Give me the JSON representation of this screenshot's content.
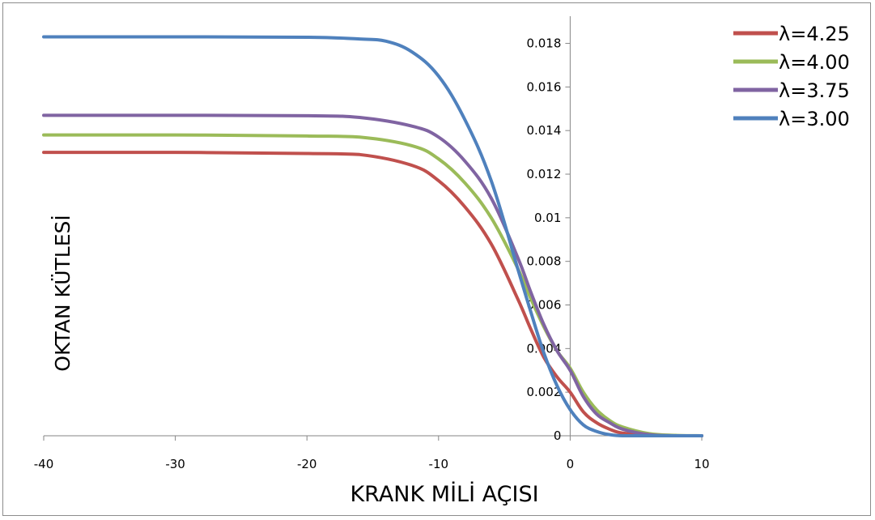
{
  "chart_data": {
    "type": "line",
    "title": "",
    "xlabel": "KRANK MİLİ AÇISI",
    "ylabel": "OKTAN KÜTLESİ",
    "xlim": [
      -40,
      10
    ],
    "ylim": [
      0,
      0.0188
    ],
    "xticks": [
      -40,
      -30,
      -20,
      -10,
      0,
      10
    ],
    "xtick_labels": [
      "-40",
      "-30",
      "-20",
      "-10",
      "0",
      "10"
    ],
    "yticks": [
      0,
      0.002,
      0.004,
      0.006,
      0.008,
      0.01,
      0.012,
      0.014,
      0.016,
      0.018
    ],
    "ytick_labels": [
      "0",
      "0.002",
      "0.004",
      "0.006",
      "0.008",
      "0.01",
      "0.012",
      "0.014",
      "0.016",
      "0.018"
    ],
    "grid": false,
    "legend_position": "top-right",
    "series": [
      {
        "name": "λ=4.25",
        "color": "#c0504d",
        "x": [
          -40,
          -30,
          -20,
          -16,
          -12,
          -10,
          -8,
          -6,
          -4,
          -3,
          -2,
          -1,
          0,
          1,
          2,
          3,
          4,
          6,
          8,
          10
        ],
        "y": [
          0.013,
          0.013,
          0.01295,
          0.0129,
          0.0124,
          0.0117,
          0.0105,
          0.0088,
          0.0063,
          0.0049,
          0.0036,
          0.0027,
          0.002,
          0.0011,
          0.0006,
          0.0003,
          0.00012,
          3e-05,
          0.0,
          0.0
        ]
      },
      {
        "name": "λ=4.00",
        "color": "#9bbb59",
        "x": [
          -40,
          -30,
          -20,
          -16,
          -12,
          -10,
          -8,
          -6,
          -4,
          -3,
          -2,
          -1,
          0,
          1,
          2,
          3,
          4,
          6,
          8,
          10
        ],
        "y": [
          0.0138,
          0.0138,
          0.01375,
          0.0137,
          0.0133,
          0.0127,
          0.0116,
          0.01,
          0.0077,
          0.0063,
          0.005,
          0.0039,
          0.0031,
          0.002,
          0.0012,
          0.0007,
          0.0004,
          0.0001,
          2e-05,
          0.0
        ]
      },
      {
        "name": "λ=3.75",
        "color": "#8064a2",
        "x": [
          -40,
          -30,
          -20,
          -16,
          -12,
          -10,
          -8,
          -6,
          -4,
          -3,
          -2,
          -1,
          0,
          1,
          2,
          3,
          4,
          6,
          8,
          10
        ],
        "y": [
          0.0147,
          0.0147,
          0.01468,
          0.0146,
          0.0142,
          0.0137,
          0.0126,
          0.0109,
          0.0082,
          0.0066,
          0.0051,
          0.0039,
          0.003,
          0.0018,
          0.001,
          0.0006,
          0.0003,
          5e-05,
          0.0,
          0.0
        ]
      },
      {
        "name": "λ=3.00",
        "color": "#4f81bd",
        "x": [
          -40,
          -30,
          -20,
          -16,
          -14,
          -12,
          -10,
          -8,
          -6,
          -4,
          -3,
          -2,
          -1,
          0,
          1,
          2,
          3,
          4,
          6,
          10
        ],
        "y": [
          0.0183,
          0.0183,
          0.01828,
          0.0182,
          0.0181,
          0.0176,
          0.0165,
          0.0145,
          0.0117,
          0.0077,
          0.0057,
          0.0038,
          0.0023,
          0.0012,
          0.0005,
          0.0002,
          5e-05,
          0.0,
          0.0,
          0.0
        ]
      }
    ]
  }
}
